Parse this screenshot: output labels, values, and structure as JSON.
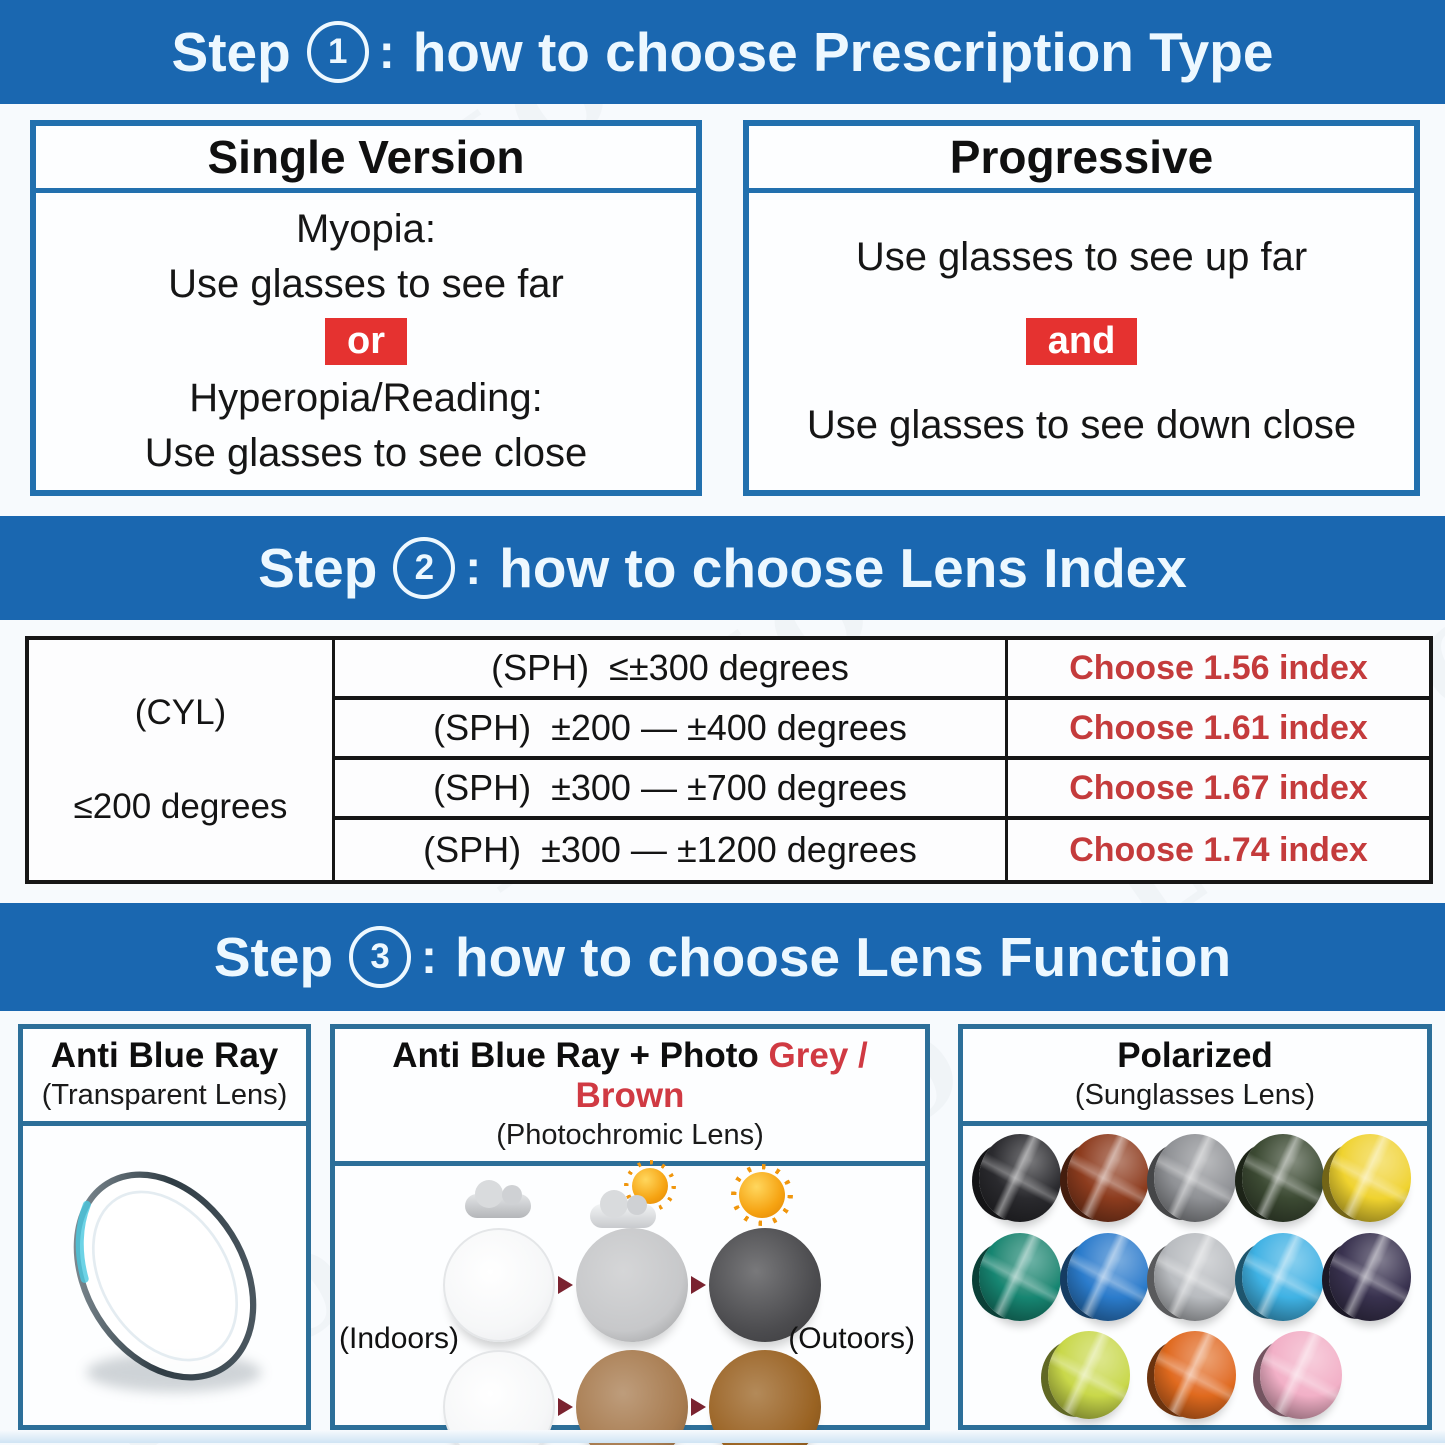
{
  "watermark": "LLOIO",
  "colors": {
    "banner_bg": "#1a67b0",
    "banner_text": "#edf8ff",
    "step1_box_border": "#2270ae",
    "panel_border": "#2d6f99",
    "badge_bg": "#e53230",
    "red_index_text": "#c43b3c",
    "red_title_text": "#d03a43",
    "table_border": "#161616"
  },
  "step1": {
    "prefix": "Step",
    "number": "1",
    "colon": ":",
    "title": "how to choose Prescription Type",
    "single": {
      "header": "Single Version",
      "line1": "Myopia:",
      "line2": "Use glasses to see far",
      "badge": "or",
      "line3": "Hyperopia/Reading:",
      "line4": "Use glasses to see close"
    },
    "progressive": {
      "header": "Progressive",
      "line1": "Use glasses to see up far",
      "badge": "and",
      "line2": "Use glasses to see down close"
    }
  },
  "step2": {
    "prefix": "Step",
    "number": "2",
    "colon": ":",
    "title": "how to choose Lens Index",
    "table": {
      "cyl_line1": "(CYL)",
      "cyl_line2": "≤200 degrees",
      "rows": [
        {
          "sph": "(SPH)  ≤±300 degrees",
          "choose": "Choose 1.56 index"
        },
        {
          "sph": "(SPH)  ±200 — ±400 degrees",
          "choose": "Choose 1.61 index"
        },
        {
          "sph": "(SPH)  ±300 — ±700 degrees",
          "choose": "Choose 1.67 index"
        },
        {
          "sph": "(SPH)  ±300 — ±1200 degrees",
          "choose": "Choose 1.74 index"
        }
      ]
    }
  },
  "step3": {
    "prefix": "Step",
    "number": "3",
    "colon": ":",
    "title": "how to choose Lens Function",
    "anti_blue": {
      "title": "Anti Blue Ray",
      "subtitle": "(Transparent Lens)"
    },
    "photochromic": {
      "title_black": "Anti Blue Ray + Photo ",
      "title_red": "Grey / Brown",
      "subtitle": "(Photochromic Lens)",
      "label_left": "(Indoors)",
      "label_right": "(Outoors)",
      "grey_sequence": [
        "#fcfcfd",
        "#c7c8ca",
        "#4c4c4f"
      ],
      "brown_sequence": [
        "#fcfcfd",
        "#a87c50",
        "#9a6322"
      ]
    },
    "polarized": {
      "title": "Polarized",
      "subtitle": "(Sunglasses Lens)",
      "rows": [
        [
          {
            "name": "black",
            "hex": "#2a2a2e"
          },
          {
            "name": "brown",
            "hex": "#8d3c1e"
          },
          {
            "name": "grey",
            "hex": "#909296"
          },
          {
            "name": "dark-green",
            "hex": "#3c4a33"
          },
          {
            "name": "yellow",
            "hex": "#f0d32f"
          }
        ],
        [
          {
            "name": "teal",
            "hex": "#168672"
          },
          {
            "name": "blue",
            "hex": "#2b7ccc"
          },
          {
            "name": "silver",
            "hex": "#b9bcc0"
          },
          {
            "name": "sky-blue",
            "hex": "#3fb2e4"
          },
          {
            "name": "dark-purple",
            "hex": "#39324f"
          }
        ],
        [
          {
            "name": "yellow-green",
            "hex": "#c9d84a"
          },
          {
            "name": "orange-red",
            "hex": "#e06a1e"
          },
          {
            "name": "pink",
            "hex": "#f2b0c7"
          }
        ]
      ]
    }
  }
}
